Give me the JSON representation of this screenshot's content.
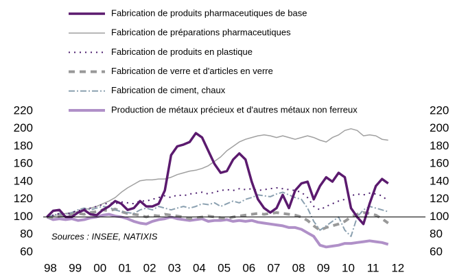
{
  "chart_data": {
    "type": "line",
    "annotation": "Sources : INSEE, NATIXIS",
    "x": [
      1998,
      1998.25,
      1998.5,
      1998.75,
      1999,
      1999.25,
      1999.5,
      1999.75,
      2000,
      2000.25,
      2000.5,
      2000.75,
      2001,
      2001.25,
      2001.5,
      2001.75,
      2002,
      2002.25,
      2002.5,
      2002.75,
      2003,
      2003.25,
      2003.5,
      2003.75,
      2004,
      2004.25,
      2004.5,
      2004.75,
      2005,
      2005.25,
      2005.5,
      2005.75,
      2006,
      2006.25,
      2006.5,
      2006.75,
      2007,
      2007.25,
      2007.5,
      2007.75,
      2008,
      2008.25,
      2008.5,
      2008.75,
      2009,
      2009.25,
      2009.5,
      2009.75,
      2010,
      2010.25,
      2010.5,
      2010.75,
      2011,
      2011.25,
      2011.5,
      2011.75
    ],
    "series": [
      {
        "name": "Fabrication de produits pharmaceutiques de base",
        "color": "#5b1a6e",
        "width": 3.5,
        "dash": "none",
        "values": [
          100,
          107,
          108,
          100,
          100,
          105,
          108,
          103,
          102,
          108,
          112,
          118,
          115,
          108,
          110,
          118,
          112,
          112,
          115,
          130,
          170,
          180,
          182,
          185,
          195,
          190,
          175,
          160,
          150,
          152,
          165,
          172,
          165,
          140,
          120,
          110,
          105,
          110,
          125,
          110,
          130,
          138,
          140,
          120,
          135,
          145,
          140,
          150,
          145,
          110,
          100,
          92,
          115,
          135,
          143,
          138
        ]
      },
      {
        "name": "Fabrication de préparations pharmaceutiques",
        "color": "#a0a0a0",
        "width": 1.5,
        "dash": "none",
        "values": [
          100,
          101,
          103,
          104,
          105,
          106,
          108,
          110,
          112,
          115,
          118,
          122,
          128,
          133,
          137,
          141,
          142,
          142,
          143,
          143,
          145,
          148,
          150,
          152,
          153,
          155,
          158,
          163,
          168,
          175,
          180,
          185,
          188,
          190,
          192,
          193,
          192,
          190,
          192,
          190,
          188,
          190,
          192,
          190,
          187,
          185,
          190,
          193,
          198,
          200,
          198,
          192,
          193,
          192,
          188,
          187
        ]
      },
      {
        "name": "Fabrication de produits en plastique",
        "color": "#4b1c6e",
        "width": 2,
        "dash": "2,6",
        "values": [
          100,
          102,
          104,
          103,
          105,
          107,
          109,
          110,
          112,
          114,
          116,
          115,
          117,
          116,
          115,
          118,
          118,
          120,
          122,
          124,
          122,
          125,
          124,
          126,
          127,
          128,
          126,
          128,
          130,
          131,
          130,
          132,
          131,
          132,
          130,
          131,
          132,
          133,
          132,
          131,
          130,
          128,
          122,
          112,
          108,
          112,
          115,
          118,
          120,
          124,
          126,
          125,
          127,
          126,
          124,
          118
        ]
      },
      {
        "name": "Fabrication de verre et d'articles en verre",
        "color": "#999999",
        "width": 4,
        "dash": "9,7",
        "values": [
          100,
          99,
          101,
          102,
          103,
          104,
          103,
          105,
          106,
          108,
          107,
          109,
          106,
          104,
          103,
          102,
          100,
          102,
          101,
          103,
          102,
          101,
          100,
          98,
          99,
          100,
          101,
          100,
          99,
          98,
          100,
          101,
          102,
          103,
          104,
          103,
          104,
          105,
          104,
          103,
          102,
          100,
          96,
          90,
          85,
          88,
          90,
          92,
          95,
          100,
          103,
          105,
          104,
          102,
          98,
          93
        ]
      },
      {
        "name": "Fabrication de ciment, chaux",
        "color": "#8aa0b0",
        "width": 2,
        "dash": "9,3,2,3",
        "values": [
          100,
          102,
          104,
          103,
          105,
          108,
          110,
          108,
          110,
          112,
          111,
          108,
          106,
          105,
          104,
          108,
          110,
          108,
          112,
          110,
          108,
          110,
          112,
          110,
          112,
          115,
          114,
          116,
          112,
          115,
          118,
          116,
          120,
          122,
          125,
          124,
          123,
          126,
          128,
          125,
          122,
          120,
          110,
          95,
          85,
          90,
          95,
          100,
          85,
          78,
          100,
          108,
          112,
          110,
          108,
          106
        ]
      },
      {
        "name": "Production de métaux précieux et d'autres métaux non ferreux",
        "color": "#b090c8",
        "width": 4,
        "dash": "none",
        "values": [
          100,
          97,
          98,
          97,
          98,
          96,
          97,
          99,
          100,
          102,
          103,
          101,
          100,
          98,
          95,
          93,
          92,
          95,
          97,
          98,
          100,
          98,
          97,
          96,
          97,
          98,
          95,
          96,
          96,
          97,
          95,
          96,
          95,
          96,
          94,
          93,
          92,
          91,
          90,
          88,
          88,
          86,
          82,
          78,
          68,
          66,
          67,
          68,
          70,
          70,
          71,
          72,
          73,
          72,
          71,
          69
        ]
      }
    ],
    "baseline": 100,
    "xlim": [
      1997.85,
      2013.25
    ],
    "xticks": [
      {
        "value": 1998,
        "label": "98"
      },
      {
        "value": 1999,
        "label": "99"
      },
      {
        "value": 2000,
        "label": "00"
      },
      {
        "value": 2001,
        "label": "01"
      },
      {
        "value": 2002,
        "label": "02"
      },
      {
        "value": 2003,
        "label": "03"
      },
      {
        "value": 2004,
        "label": "04"
      },
      {
        "value": 2005,
        "label": "05"
      },
      {
        "value": 2006,
        "label": "06"
      },
      {
        "value": 2007,
        "label": "07"
      },
      {
        "value": 2008,
        "label": "08"
      },
      {
        "value": 2009,
        "label": "09"
      },
      {
        "value": 2010,
        "label": "10"
      },
      {
        "value": 2011,
        "label": "11"
      },
      {
        "value": 2012,
        "label": "12"
      }
    ],
    "ylim": [
      60,
      220
    ],
    "yticks": [
      60,
      80,
      100,
      120,
      140,
      160,
      180,
      200,
      220
    ],
    "y2lim": [
      60,
      220
    ],
    "y2ticks": [
      60,
      80,
      100,
      120,
      140,
      160,
      180,
      200,
      220
    ]
  }
}
